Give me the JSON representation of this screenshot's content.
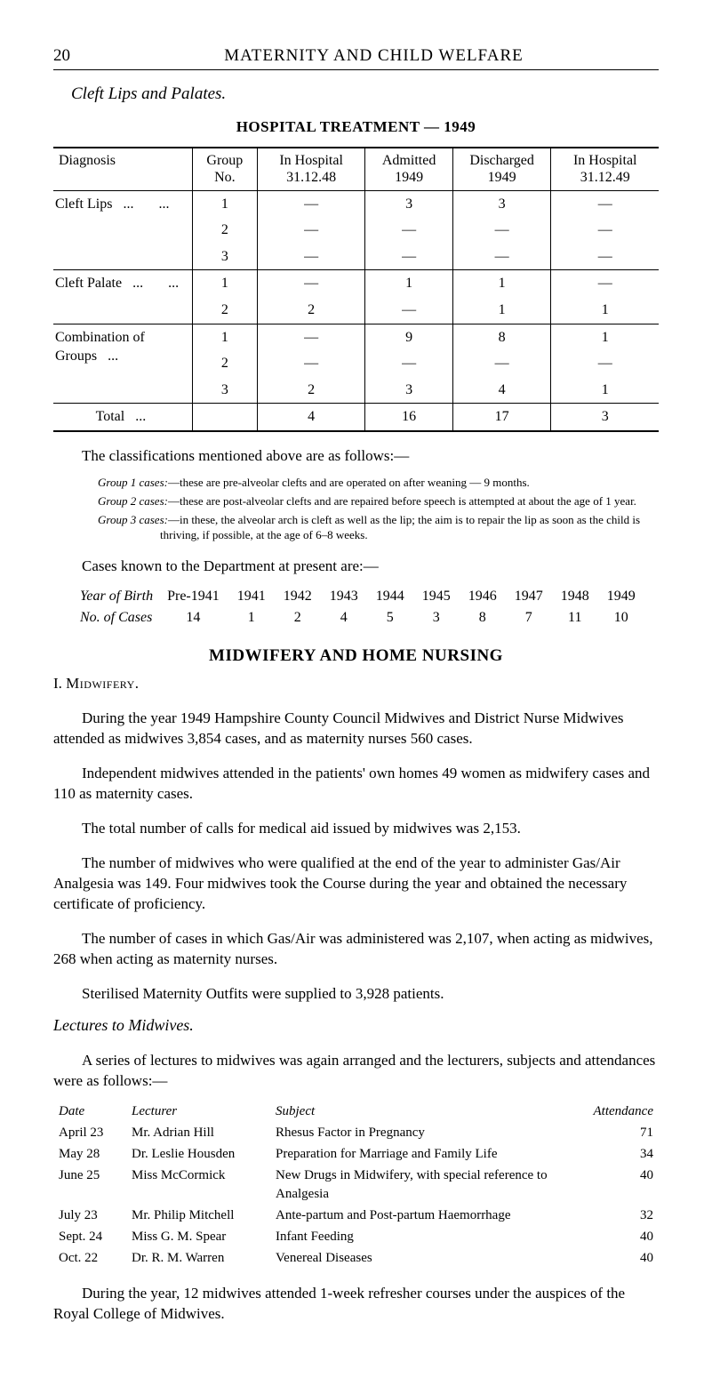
{
  "page_number": "20",
  "running_head": "MATERNITY AND CHILD WELFARE",
  "section_title": "Cleft Lips and Palates.",
  "hospital_table": {
    "caption": "HOSPITAL TREATMENT — 1949",
    "columns": [
      "Diagnosis",
      "Group No.",
      "In Hospital 31.12.48",
      "Admitted 1949",
      "Discharged 1949",
      "In Hospital 31.12.49"
    ],
    "groups": [
      {
        "diagnosis": "Cleft Lips",
        "rows": [
          {
            "group_no": "1",
            "in_48": "—",
            "admitted": "3",
            "discharged": "3",
            "in_49": "—"
          },
          {
            "group_no": "2",
            "in_48": "—",
            "admitted": "—",
            "discharged": "—",
            "in_49": "—"
          },
          {
            "group_no": "3",
            "in_48": "—",
            "admitted": "—",
            "discharged": "—",
            "in_49": "—"
          }
        ]
      },
      {
        "diagnosis": "Cleft Palate",
        "rows": [
          {
            "group_no": "1",
            "in_48": "—",
            "admitted": "1",
            "discharged": "1",
            "in_49": "—"
          },
          {
            "group_no": "2",
            "in_48": "2",
            "admitted": "—",
            "discharged": "1",
            "in_49": "1"
          }
        ]
      },
      {
        "diagnosis": "Combination of Groups",
        "rows": [
          {
            "group_no": "1",
            "in_48": "—",
            "admitted": "9",
            "discharged": "8",
            "in_49": "1"
          },
          {
            "group_no": "2",
            "in_48": "—",
            "admitted": "—",
            "discharged": "—",
            "in_49": "—"
          },
          {
            "group_no": "3",
            "in_48": "2",
            "admitted": "3",
            "discharged": "4",
            "in_49": "1"
          }
        ]
      }
    ],
    "total_label": "Total",
    "total_row": {
      "in_48": "4",
      "admitted": "16",
      "discharged": "17",
      "in_49": "3"
    }
  },
  "class_intro": "The classifications mentioned above are as follows:—",
  "group_defs": [
    {
      "label": "Group 1 cases:",
      "text": "—these are pre-alveolar clefts and are operated on after weaning — 9 months."
    },
    {
      "label": "Group 2 cases:",
      "text": "—these are post-alveolar clefts and are repaired before speech is attempted at about the age of 1 year."
    },
    {
      "label": "Group 3 cases:",
      "text": "—in these, the alveolar arch is cleft as well as the lip; the aim is to repair the lip as soon as the child is thriving, if possible, at the age of 6–8 weeks."
    }
  ],
  "cases_known": "Cases known to the Department at present are:—",
  "yob": {
    "row1_label": "Year of Birth",
    "row2_label": "No. of Cases",
    "years": [
      "Pre-1941",
      "1941",
      "1942",
      "1943",
      "1944",
      "1945",
      "1946",
      "1947",
      "1948",
      "1949"
    ],
    "counts": [
      "14",
      "1",
      "2",
      "4",
      "5",
      "3",
      "8",
      "7",
      "11",
      "10"
    ]
  },
  "mid_heading": "MIDWIFERY AND HOME NURSING",
  "roman_I": "I.",
  "midwifery_label": "Midwifery.",
  "body_paras": [
    "During the year 1949 Hampshire County Council Midwives and District Nurse Midwives attended as midwives 3,854 cases, and as maternity nurses 560 cases.",
    "Independent midwives attended in the patients' own homes 49 women as midwifery cases and 110 as maternity cases.",
    "The total number of calls for medical aid issued by midwives was 2,153.",
    "The number of midwives who were qualified at the end of the year to administer Gas/Air Analgesia was 149. Four midwives took the Course during the year and obtained the necessary certificate of proficiency.",
    "The number of cases in which Gas/Air was administered was 2,107, when acting as midwives, 268 when acting as maternity nurses.",
    "Sterilised Maternity Outfits were supplied to 3,928 patients."
  ],
  "lectures_heading": "Lectures to Midwives.",
  "lectures_intro": "A series of lectures to midwives was again arranged and the lecturers, subjects and attendances were as follows:—",
  "lectures_table": {
    "columns": [
      "Date",
      "Lecturer",
      "Subject",
      "Attendance"
    ],
    "rows": [
      {
        "date": "April 23",
        "lecturer": "Mr. Adrian Hill",
        "subject": "Rhesus Factor in Pregnancy",
        "attendance": "71"
      },
      {
        "date": "May 28",
        "lecturer": "Dr. Leslie Housden",
        "subject": "Preparation for Marriage and Family Life",
        "attendance": "34"
      },
      {
        "date": "June 25",
        "lecturer": "Miss McCormick",
        "subject": "New Drugs in Midwifery, with special reference to Analgesia",
        "attendance": "40"
      },
      {
        "date": "July 23",
        "lecturer": "Mr. Philip Mitchell",
        "subject": "Ante-partum and Post-partum Haemorrhage",
        "attendance": "32"
      },
      {
        "date": "Sept. 24",
        "lecturer": "Miss G. M. Spear",
        "subject": "Infant Feeding",
        "attendance": "40"
      },
      {
        "date": "Oct. 22",
        "lecturer": "Dr. R. M. Warren",
        "subject": "Venereal Diseases",
        "attendance": "40"
      }
    ]
  },
  "closing_para": "During the year, 12 midwives attended 1-week refresher courses under the auspices of the Royal College of Midwives."
}
